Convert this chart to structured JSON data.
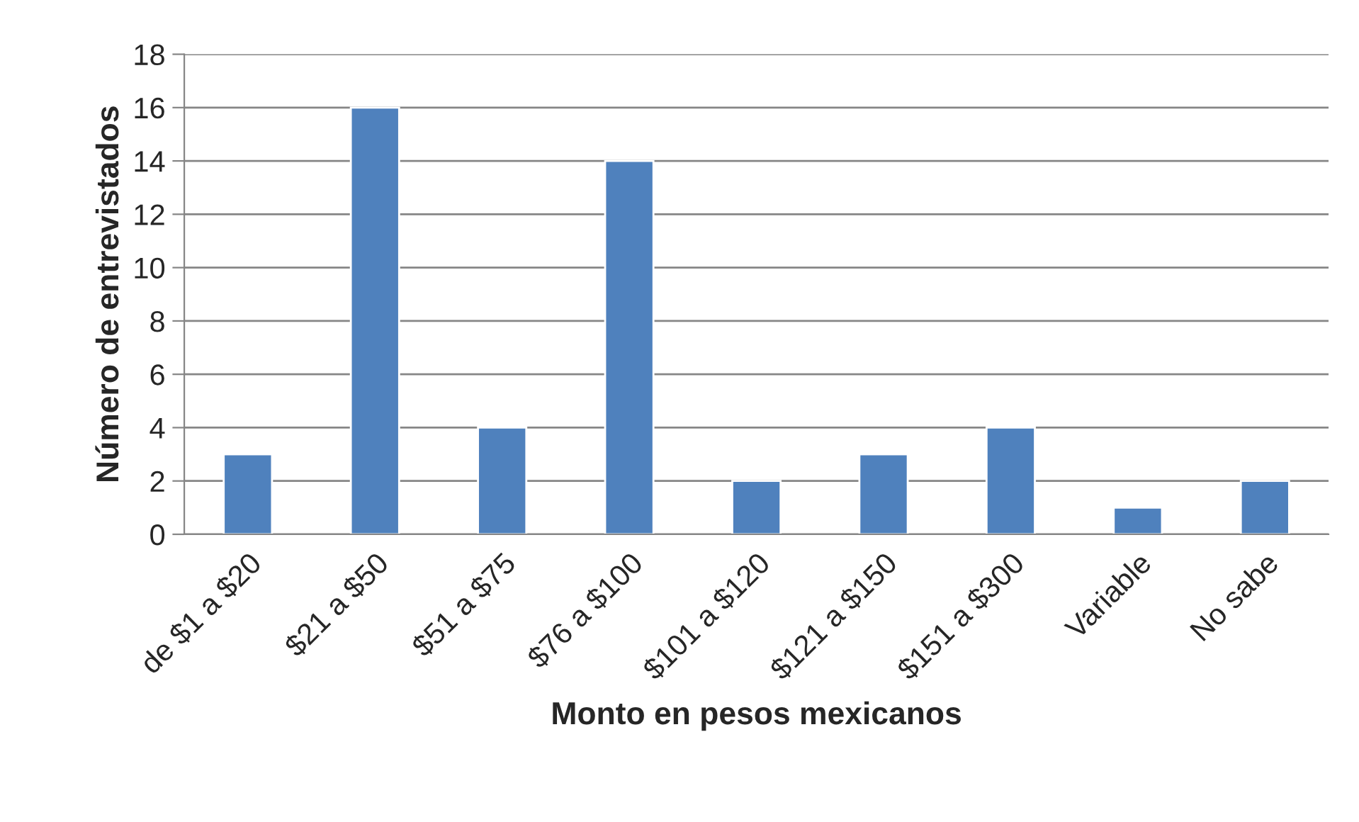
{
  "chart_data": {
    "type": "bar",
    "xlabel": "Monto en pesos mexicanos",
    "ylabel": "Número de entrevistados",
    "categories": [
      "de $1 a $20",
      "$21 a $50",
      "$51 a $75",
      "$76 a $100",
      "$101 a $120",
      "$121 a $150",
      "$151 a $300",
      "Variable",
      "No sabe"
    ],
    "values": [
      3,
      16,
      4,
      14,
      2,
      3,
      4,
      1,
      2
    ],
    "color": "#4f81bd",
    "ylim": [
      0,
      18
    ],
    "yticks": [
      0,
      2,
      4,
      6,
      8,
      10,
      12,
      14,
      16,
      18
    ],
    "grid": "y",
    "legend": false
  }
}
